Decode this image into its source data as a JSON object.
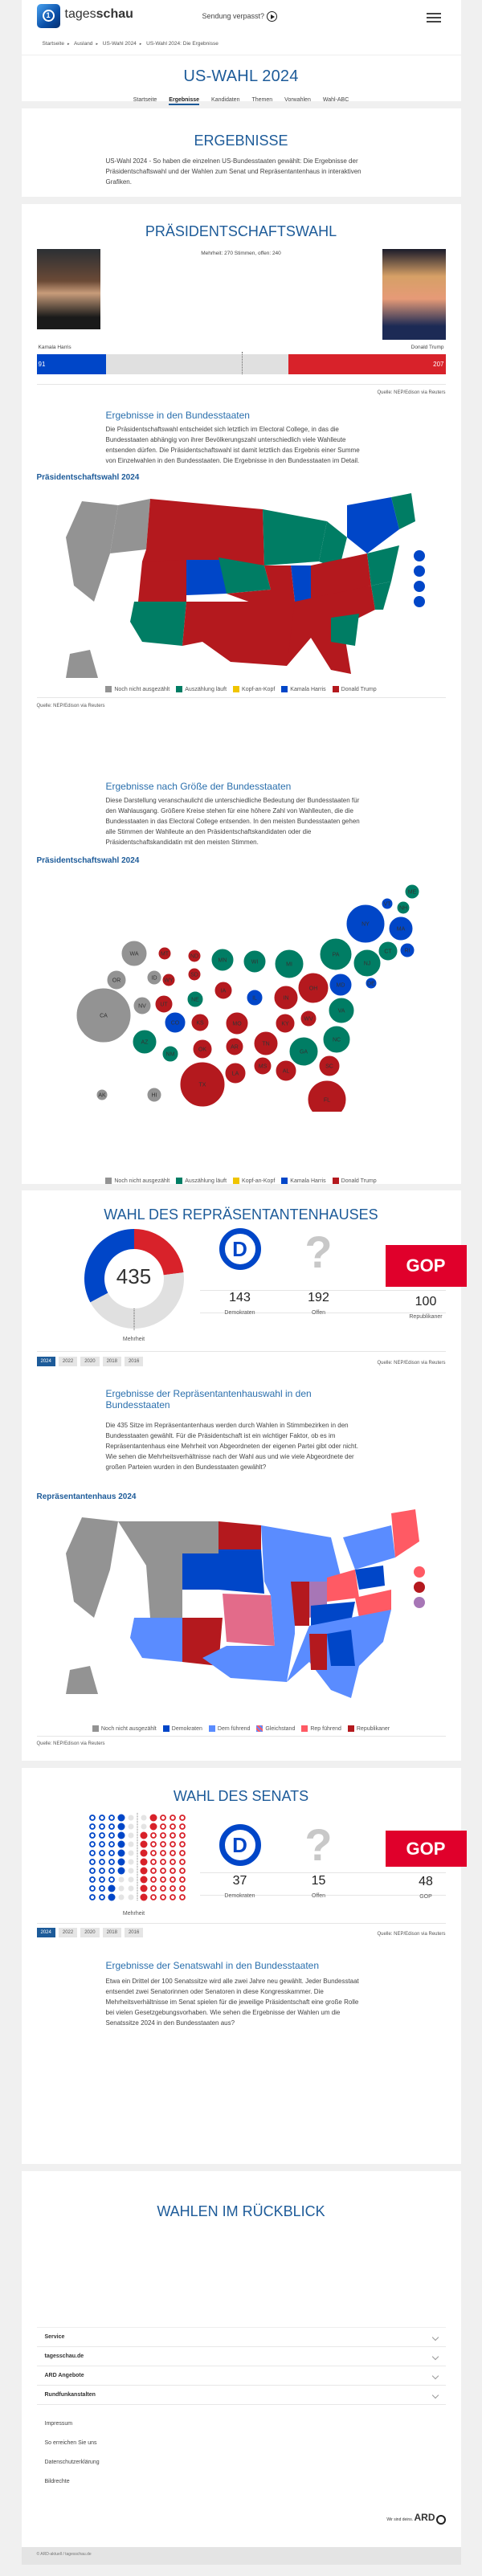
{
  "header": {
    "brand_light": "tages",
    "brand_bold": "schau",
    "sendung": "Sendung verpasst?",
    "breadcrumb": [
      "Startseite",
      "Ausland",
      "US-Wahl 2024",
      "US-Wahl 2024: Die Ergebnisse"
    ]
  },
  "title": "US-WAHL 2024",
  "subnav": [
    {
      "label": "Startseite"
    },
    {
      "label": "Ergebnisse",
      "active": true
    },
    {
      "label": "Kandidaten"
    },
    {
      "label": "Themen"
    },
    {
      "label": "Vorwahlen"
    },
    {
      "label": "Wahl-ABC"
    }
  ],
  "ergebnisse": {
    "heading": "ERGEBNISSE",
    "text": "US-Wahl 2024 - So haben die einzelnen US-Bundesstaaten gewählt: Die Ergebnisse der Präsidentschaftswahl und der Wahlen zum Senat und Repräsentantenhaus in interaktiven Grafiken."
  },
  "praesident": {
    "heading": "PRÄSIDENTSCHAFTSWAHL",
    "majority_text": "Mehrheit: 270 Stimmen, offen: 240",
    "harris": {
      "name": "Kamala Harris",
      "votes": "91"
    },
    "trump": {
      "name": "Donald Trump",
      "votes": "207"
    },
    "source": "Quelle: NEP/Edison via Reuters",
    "states_heading": "Ergebnisse in den Bundesstaaten",
    "states_text": "Die Präsidentschaftswahl entscheidet sich letztlich im Electoral College, in das die Bundesstaaten abhängig von ihrer Bevölkerungszahl unterschiedlich viele Wahlleute entsenden dürfen. Die Präsidentschaftswahl ist damit letztlich das Ergebnis einer Summe von Einzelwahlen in den Bundesstaaten. Die Ergebnisse in den Bundesstaaten im Detail.",
    "map_title": "Präsidentschaftswahl 2024",
    "size_heading": "Ergebnisse nach Größe der Bundesstaaten",
    "size_text": "Diese Darstellung veranschaulicht die unterschiedliche Bedeutung der Bundesstaaten für den Wahlausgang. Größere Kreise stehen für eine höhere Zahl von Wahlleuten, die die Bundesstaaten in das Electoral College entsenden. In den meisten Bundesstaaten gehen alle Stimmen der Wahlleute an den Präsidentschaftskandidaten oder die Präsidentschaftskandidatin mit den meisten Stimmen.",
    "bubble_title": "Präsidentschaftswahl 2024",
    "legend": [
      {
        "label": "Noch nicht ausgezählt",
        "color": "#939393"
      },
      {
        "label": "Auszählung läuft",
        "color": "#007d64"
      },
      {
        "label": "Kopf-an-Kopf",
        "color": "#f0c400"
      },
      {
        "label": "Kamala Harris",
        "color": "#0046c8"
      },
      {
        "label": "Donald Trump",
        "color": "#b4191e"
      }
    ]
  },
  "house": {
    "heading": "WAHL DES REPRÄSENTANTENHAUSES",
    "total": "435",
    "majority": "Mehrheit",
    "parties": [
      {
        "logo": "D",
        "num": "143",
        "label": "Demokraten"
      },
      {
        "logo": "?",
        "num": "192",
        "label": "Offen"
      },
      {
        "logo": "GOP",
        "num": "100",
        "label": "Republikaner"
      }
    ],
    "years": [
      "2024",
      "2022",
      "2020",
      "2018",
      "2016"
    ],
    "source": "Quelle: NEP/Edison via Reuters",
    "states_heading": "Ergebnisse der Repräsentantenhauswahl in den Bundesstaaten",
    "states_text": "Die 435 Sitze im Repräsentantenhaus werden durch Wahlen in Stimmbezirken in den Bundesstaaten gewählt. Für die Präsidentschaft ist ein wichtiger Faktor, ob es im Repräsentantenhaus eine Mehrheit von Abgeordneten der eigenen Partei gibt oder nicht. Wie sehen die Mehrheitsverhältnisse nach der Wahl aus und wie viele Abgeordnete der großen Parteien wurden in den Bundesstaaten gewählt?",
    "map_title": "Repräsentantenhaus 2024",
    "legend": [
      {
        "label": "Noch nicht ausgezählt",
        "color": "#939393"
      },
      {
        "label": "Demokraten",
        "color": "#0046c8"
      },
      {
        "label": "Dem führend",
        "color": "#5a8cff"
      },
      {
        "label": "Gleichstand",
        "color": "hatch"
      },
      {
        "label": "Rep führend",
        "color": "#ff5a64"
      },
      {
        "label": "Republikaner",
        "color": "#b4191e"
      }
    ],
    "map_source": "Quelle: NEP/Edison via Reuters"
  },
  "senate": {
    "heading": "WAHL DES SENATS",
    "majority": "Mehrheit",
    "parties": [
      {
        "logo": "D",
        "num": "37",
        "label": "Demokraten"
      },
      {
        "logo": "?",
        "num": "15",
        "label": "Offen"
      },
      {
        "logo": "GOP",
        "num": "48",
        "label": "GOP"
      }
    ],
    "years": [
      "2024",
      "2022",
      "2020",
      "2018",
      "2016"
    ],
    "source": "Quelle: NEP/Edison via Reuters",
    "states_heading": "Ergebnisse der Senatswahl in den Bundesstaaten",
    "states_text": "Etwa ein Drittel der 100 Senatssitze wird alle zwei Jahre neu gewählt. Jeder Bundesstaat entsendet zwei Senatorinnen oder Senatoren in diese Kongresskammer. Die Mehrheitsverhältnisse im Senat spielen für die jeweilige Präsidentschaft eine große Rolle bei vielen Gesetzgebungsvorhaben. Wie sehen die Ergebnisse der Wahlen um die Senatssitze 2024 in den Bundesstaaten aus?"
  },
  "rueckblick": {
    "heading": "WAHLEN IM RÜCKBLICK"
  },
  "footer": {
    "accordion": [
      "Service",
      "tagesschau.de",
      "ARD Angebote",
      "Rundfunkanstalten"
    ],
    "links": [
      "Impressum",
      "So erreichen Sie uns",
      "Datenschutzerklärung",
      "Bildrechte"
    ],
    "ard": "Wir sind deins.",
    "ard_logo": "ARD",
    "copyright": "© ARD-aktuell / tagesschau.de"
  },
  "chart_data": [
    {
      "type": "bar",
      "title": "Präsidentschaftswahl Wahlleute",
      "categories": [
        "Kamala Harris",
        "Offen",
        "Donald Trump"
      ],
      "values": [
        91,
        240,
        207
      ],
      "majority": 270,
      "total": 538
    },
    {
      "type": "pie",
      "title": "Repräsentantenhaus",
      "categories": [
        "Demokraten",
        "Offen",
        "Republikaner"
      ],
      "values": [
        143,
        192,
        100
      ],
      "total": 435
    },
    {
      "type": "scatter",
      "title": "Senat",
      "categories": [
        "Demokraten",
        "Offen",
        "GOP"
      ],
      "values": [
        37,
        15,
        48
      ],
      "total": 100
    }
  ]
}
